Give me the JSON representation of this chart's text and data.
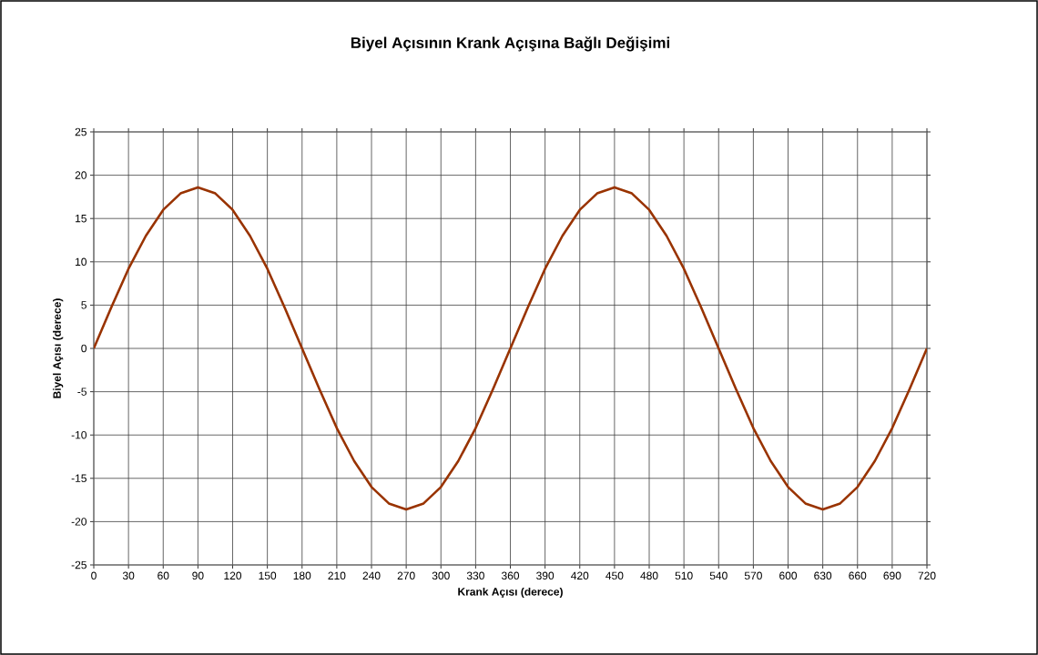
{
  "chart_data": {
    "type": "line",
    "title": "Biyel Açısının Krank Açışına Bağlı Değişimi",
    "xlabel": "Krank Açısı (derece)",
    "ylabel": "Biyel Açısı (derece)",
    "x": [
      0,
      15,
      30,
      45,
      60,
      75,
      90,
      105,
      120,
      135,
      150,
      165,
      180,
      195,
      210,
      225,
      240,
      255,
      270,
      285,
      300,
      315,
      330,
      345,
      360,
      375,
      390,
      405,
      420,
      435,
      450,
      465,
      480,
      495,
      510,
      525,
      540,
      555,
      570,
      585,
      600,
      615,
      630,
      645,
      660,
      675,
      690,
      705,
      720
    ],
    "series": [
      {
        "color": "#993300",
        "values": [
          0,
          4.7,
          9.2,
          13.0,
          16.0,
          17.9,
          18.6,
          17.9,
          16.0,
          13.0,
          9.2,
          4.7,
          0,
          -4.7,
          -9.2,
          -13.0,
          -16.0,
          -17.9,
          -18.6,
          -17.9,
          -16.0,
          -13.0,
          -9.2,
          -4.7,
          0,
          4.7,
          9.2,
          13.0,
          16.0,
          17.9,
          18.6,
          17.9,
          16.0,
          13.0,
          9.2,
          4.7,
          0,
          -4.7,
          -9.2,
          -13.0,
          -16.0,
          -17.9,
          -18.6,
          -17.9,
          -16.0,
          -13.0,
          -9.2,
          -4.7,
          0
        ]
      }
    ],
    "xlim": [
      0,
      720
    ],
    "xticks": [
      0,
      30,
      60,
      90,
      120,
      150,
      180,
      210,
      240,
      270,
      300,
      330,
      360,
      390,
      420,
      450,
      480,
      510,
      540,
      570,
      600,
      630,
      660,
      690,
      720
    ],
    "ylim": [
      -25,
      25
    ],
    "yticks": [
      -25,
      -20,
      -15,
      -10,
      -5,
      0,
      5,
      10,
      15,
      20,
      25
    ],
    "grid": true,
    "marker": "none",
    "line_style": "solid"
  }
}
